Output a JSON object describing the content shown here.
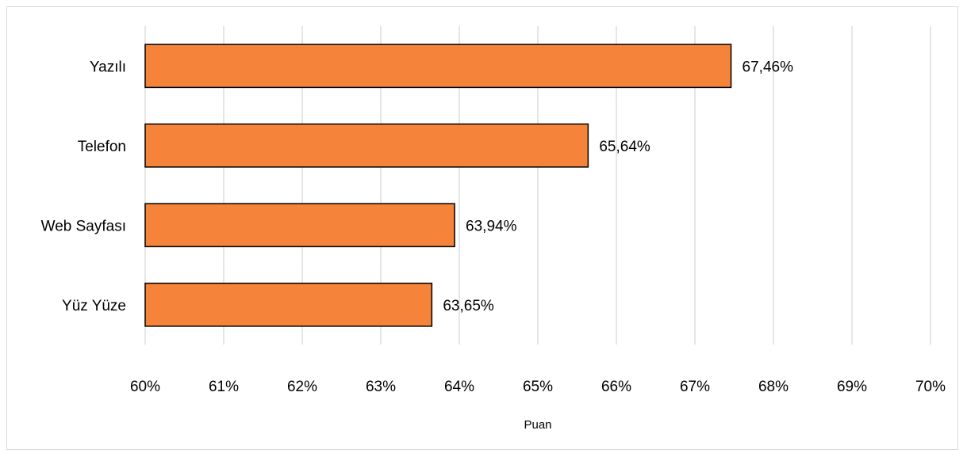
{
  "chart_data": {
    "type": "bar",
    "orientation": "horizontal",
    "title": "",
    "xlabel": "Puan",
    "ylabel": "",
    "categories": [
      "Yazılı",
      "Telefon",
      "Web Sayfası",
      "Yüz Yüze"
    ],
    "values": [
      67.46,
      65.64,
      63.94,
      63.65
    ],
    "data_labels": [
      "67,46%",
      "65,64%",
      "63,94%",
      "63,65%"
    ],
    "xlim": [
      60,
      70
    ],
    "x_ticks": [
      60,
      61,
      62,
      63,
      64,
      65,
      66,
      67,
      68,
      69,
      70
    ],
    "x_tick_labels": [
      "60%",
      "61%",
      "62%",
      "63%",
      "64%",
      "65%",
      "66%",
      "67%",
      "68%",
      "69%",
      "70%"
    ],
    "grid": "vertical",
    "legend": "none",
    "colors": {
      "bar_fill": "#f5843a",
      "bar_stroke": "#000000",
      "grid": "#d9d9d9",
      "border": "#d9d9d9"
    }
  }
}
